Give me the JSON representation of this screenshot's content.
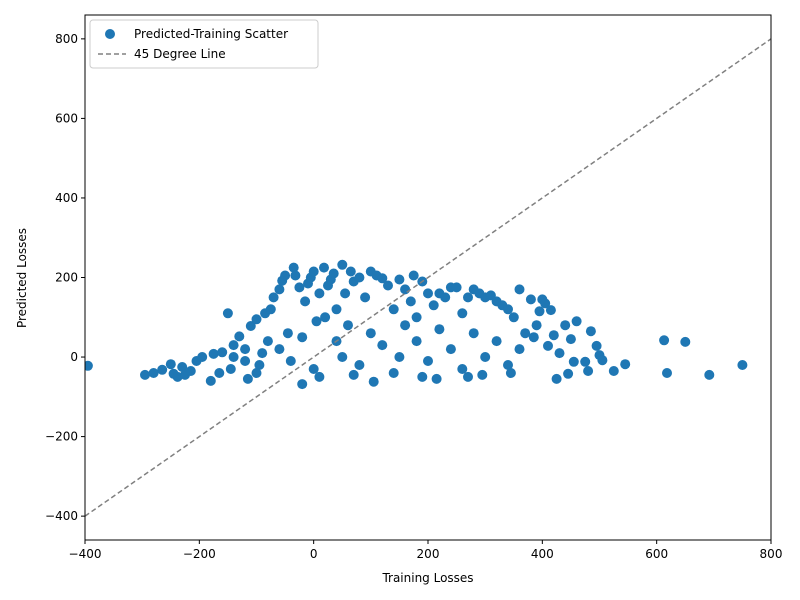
{
  "chart_data": {
    "type": "scatter",
    "title": "",
    "xlabel": "Training Losses",
    "ylabel": "Predicted Losses",
    "xlim": [
      -400,
      800
    ],
    "ylim": [
      -460,
      860
    ],
    "xticks": [
      -400,
      -200,
      0,
      200,
      400,
      600,
      800
    ],
    "yticks": [
      -400,
      -200,
      0,
      200,
      400,
      600,
      800
    ],
    "grid": false,
    "legend_position": "top-left",
    "colors": {
      "scatter": "#1f77b4",
      "reference_line": "#808080"
    },
    "series": [
      {
        "name": "Predicted-Training Scatter",
        "kind": "scatter",
        "points": [
          [
            -395,
            -22
          ],
          [
            -295,
            -45
          ],
          [
            -280,
            -40
          ],
          [
            -265,
            -32
          ],
          [
            -250,
            -18
          ],
          [
            -245,
            -42
          ],
          [
            -238,
            -50
          ],
          [
            -230,
            -25
          ],
          [
            -225,
            -45
          ],
          [
            -215,
            -35
          ],
          [
            -205,
            -10
          ],
          [
            -195,
            0
          ],
          [
            -180,
            -60
          ],
          [
            -175,
            8
          ],
          [
            -165,
            -40
          ],
          [
            -160,
            12
          ],
          [
            -150,
            110
          ],
          [
            -145,
            -30
          ],
          [
            -140,
            0
          ],
          [
            -130,
            52
          ],
          [
            -120,
            20
          ],
          [
            -115,
            -55
          ],
          [
            -110,
            78
          ],
          [
            -100,
            95
          ],
          [
            -95,
            -20
          ],
          [
            -85,
            110
          ],
          [
            -80,
            40
          ],
          [
            -75,
            120
          ],
          [
            -70,
            150
          ],
          [
            -60,
            170
          ],
          [
            -55,
            192
          ],
          [
            -50,
            205
          ],
          [
            -45,
            60
          ],
          [
            -35,
            225
          ],
          [
            -32,
            205
          ],
          [
            -25,
            175
          ],
          [
            -20,
            -68
          ],
          [
            -15,
            140
          ],
          [
            -10,
            185
          ],
          [
            -5,
            200
          ],
          [
            0,
            215
          ],
          [
            5,
            90
          ],
          [
            10,
            160
          ],
          [
            18,
            225
          ],
          [
            25,
            180
          ],
          [
            30,
            195
          ],
          [
            35,
            210
          ],
          [
            40,
            40
          ],
          [
            50,
            232
          ],
          [
            55,
            160
          ],
          [
            65,
            215
          ],
          [
            70,
            190
          ],
          [
            80,
            200
          ],
          [
            90,
            150
          ],
          [
            100,
            215
          ],
          [
            105,
            -62
          ],
          [
            110,
            205
          ],
          [
            120,
            198
          ],
          [
            130,
            180
          ],
          [
            140,
            120
          ],
          [
            150,
            195
          ],
          [
            160,
            170
          ],
          [
            170,
            140
          ],
          [
            175,
            205
          ],
          [
            180,
            100
          ],
          [
            190,
            190
          ],
          [
            200,
            160
          ],
          [
            210,
            130
          ],
          [
            215,
            -55
          ],
          [
            220,
            160
          ],
          [
            230,
            150
          ],
          [
            240,
            175
          ],
          [
            250,
            175
          ],
          [
            260,
            110
          ],
          [
            270,
            150
          ],
          [
            280,
            170
          ],
          [
            290,
            160
          ],
          [
            295,
            -45
          ],
          [
            300,
            150
          ],
          [
            310,
            155
          ],
          [
            320,
            140
          ],
          [
            330,
            130
          ],
          [
            340,
            120
          ],
          [
            345,
            -40
          ],
          [
            350,
            100
          ],
          [
            360,
            170
          ],
          [
            370,
            60
          ],
          [
            380,
            145
          ],
          [
            385,
            50
          ],
          [
            390,
            80
          ],
          [
            395,
            115
          ],
          [
            400,
            145
          ],
          [
            405,
            135
          ],
          [
            410,
            28
          ],
          [
            415,
            118
          ],
          [
            420,
            55
          ],
          [
            425,
            -55
          ],
          [
            430,
            10
          ],
          [
            440,
            80
          ],
          [
            445,
            -42
          ],
          [
            450,
            45
          ],
          [
            455,
            -12
          ],
          [
            460,
            90
          ],
          [
            475,
            -12
          ],
          [
            480,
            -35
          ],
          [
            485,
            65
          ],
          [
            495,
            28
          ],
          [
            500,
            5
          ],
          [
            505,
            -8
          ],
          [
            525,
            -35
          ],
          [
            545,
            -18
          ],
          [
            613,
            42
          ],
          [
            618,
            -40
          ],
          [
            650,
            38
          ],
          [
            692,
            -45
          ],
          [
            750,
            -20
          ],
          [
            -60,
            20
          ],
          [
            -40,
            -10
          ],
          [
            -20,
            50
          ],
          [
            0,
            -30
          ],
          [
            20,
            100
          ],
          [
            40,
            120
          ],
          [
            60,
            80
          ],
          [
            80,
            -20
          ],
          [
            100,
            60
          ],
          [
            120,
            30
          ],
          [
            140,
            -40
          ],
          [
            160,
            80
          ],
          [
            180,
            40
          ],
          [
            200,
            -10
          ],
          [
            220,
            70
          ],
          [
            240,
            20
          ],
          [
            260,
            -30
          ],
          [
            280,
            60
          ],
          [
            300,
            0
          ],
          [
            320,
            40
          ],
          [
            340,
            -20
          ],
          [
            360,
            20
          ],
          [
            150,
            0
          ],
          [
            50,
            0
          ],
          [
            -100,
            -40
          ],
          [
            -120,
            -10
          ],
          [
            -140,
            30
          ],
          [
            -90,
            10
          ],
          [
            10,
            -50
          ],
          [
            70,
            -45
          ],
          [
            190,
            -50
          ],
          [
            270,
            -50
          ]
        ]
      },
      {
        "name": "45 Degree Line",
        "kind": "line",
        "style": "dashed",
        "x": [
          -400,
          800
        ],
        "y": [
          -400,
          800
        ]
      }
    ]
  }
}
